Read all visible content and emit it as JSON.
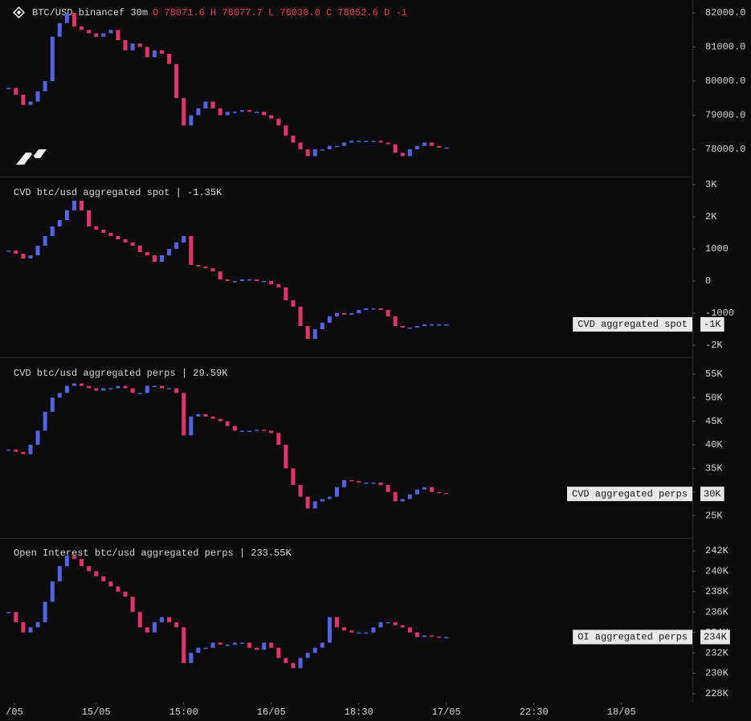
{
  "chart_data": [
    {
      "type": "candlestick",
      "title": "BTC/USD binancef 30m",
      "legend": "O 78071.6 H 78077.7 L 78030.0 C 78052.6 D -1",
      "up_color": "#5464e0",
      "down_color": "#e0356a",
      "x": [
        -12,
        -11,
        -10,
        -9,
        -8,
        -7,
        -6,
        -5,
        -4,
        -3,
        -2,
        -1,
        0,
        1,
        2,
        3,
        4,
        5,
        6,
        7,
        8,
        9,
        10,
        11,
        12,
        13,
        14,
        15,
        16,
        17,
        18,
        19,
        20,
        21,
        22,
        23,
        24,
        25,
        26,
        27,
        28,
        29,
        30,
        31,
        32,
        33,
        34,
        35,
        36,
        37,
        38,
        39,
        40,
        41,
        42,
        43,
        44,
        45,
        46,
        47,
        48
      ],
      "values": [
        79800,
        79600,
        79300,
        79400,
        79700,
        80000,
        81300,
        81700,
        82000,
        81600,
        81500,
        81400,
        81300,
        81400,
        81500,
        81200,
        80900,
        81100,
        81000,
        80700,
        80900,
        80800,
        80500,
        79500,
        78700,
        79000,
        79200,
        79400,
        79200,
        79000,
        79100,
        79100,
        79150,
        79100,
        79100,
        79000,
        78900,
        78700,
        78400,
        78200,
        78000,
        77800,
        78000,
        78000,
        78100,
        78100,
        78200,
        78250,
        78250,
        78250,
        78250,
        78200,
        78150,
        77900,
        77800,
        78000,
        78100,
        78200,
        78100,
        78050,
        78053
      ],
      "xlim": [
        -12.3,
        81.5
      ],
      "ylim": [
        77200,
        82376
      ],
      "yticks": [
        {
          "value": 82000,
          "label": "82000.0"
        },
        {
          "value": 81000,
          "label": "81000.0"
        },
        {
          "value": 80000,
          "label": "80000.0"
        },
        {
          "value": 79000,
          "label": "79000.0"
        },
        {
          "value": 78000,
          "label": "78000.0"
        }
      ]
    },
    {
      "type": "candlestick",
      "title": "CVD btc/usd aggregated spot | -1.35K",
      "up_color": "#5464e0",
      "down_color": "#e0356a",
      "x": [
        -12,
        -11,
        -10,
        -9,
        -8,
        -7,
        -6,
        -5,
        -4,
        -3,
        -2,
        -1,
        0,
        1,
        2,
        3,
        4,
        5,
        6,
        7,
        8,
        9,
        10,
        11,
        12,
        13,
        14,
        15,
        16,
        17,
        18,
        19,
        20,
        21,
        22,
        23,
        24,
        25,
        26,
        27,
        28,
        29,
        30,
        31,
        32,
        33,
        34,
        35,
        36,
        37,
        38,
        39,
        40,
        41,
        42,
        43,
        44,
        45,
        46,
        47,
        48
      ],
      "values": [
        950,
        850,
        700,
        800,
        1100,
        1400,
        1700,
        1900,
        2200,
        2500,
        2200,
        1700,
        1600,
        1500,
        1400,
        1300,
        1200,
        1100,
        900,
        800,
        600,
        800,
        1000,
        1200,
        1400,
        500,
        450,
        400,
        300,
        50,
        0,
        0,
        50,
        50,
        0,
        0,
        -100,
        -200,
        -600,
        -800,
        -1400,
        -1800,
        -1500,
        -1300,
        -1100,
        -1000,
        -1050,
        -1000,
        -900,
        -850,
        -850,
        -900,
        -1100,
        -1400,
        -1450,
        -1450,
        -1400,
        -1350,
        -1350,
        -1350,
        -1350
      ],
      "xlim": [
        -12.3,
        81.5
      ],
      "ylim": [
        -2375,
        3250
      ],
      "yticks": [
        {
          "value": 3000,
          "label": "3K"
        },
        {
          "value": 2000,
          "label": "2K"
        },
        1000,
        0,
        -1000,
        {
          "value": -2000,
          "label": "-2K"
        }
      ],
      "tag": {
        "name": "CVD aggregated spot",
        "value_label": "-1K"
      }
    },
    {
      "type": "candlestick",
      "title": "CVD btc/usd aggregated perps | 29.59K",
      "up_color": "#5464e0",
      "down_color": "#e0356a",
      "x": [
        -12,
        -11,
        -10,
        -9,
        -8,
        -7,
        -6,
        -5,
        -4,
        -3,
        -2,
        -1,
        0,
        1,
        2,
        3,
        4,
        5,
        6,
        7,
        8,
        9,
        10,
        11,
        12,
        13,
        14,
        15,
        16,
        17,
        18,
        19,
        20,
        21,
        22,
        23,
        24,
        25,
        26,
        27,
        28,
        29,
        30,
        31,
        32,
        33,
        34,
        35,
        36,
        37,
        38,
        39,
        40,
        41,
        42,
        43,
        44,
        45,
        46,
        47,
        48
      ],
      "values": [
        39000,
        38500,
        38000,
        40000,
        43000,
        47000,
        50000,
        51000,
        52500,
        53000,
        52500,
        52000,
        51500,
        52000,
        52000,
        52500,
        52000,
        51000,
        51000,
        52500,
        52500,
        52000,
        52000,
        51000,
        42000,
        46000,
        46500,
        46000,
        45500,
        45000,
        44000,
        43000,
        43000,
        43000,
        43200,
        43000,
        42500,
        40000,
        35000,
        31500,
        29000,
        26500,
        28000,
        28500,
        29000,
        31000,
        32500,
        32300,
        32000,
        32000,
        32000,
        31500,
        30000,
        28000,
        28500,
        29500,
        30500,
        31000,
        30000,
        29800,
        29590
      ],
      "xlim": [
        -12.3,
        81.5
      ],
      "ylim": [
        20250,
        58560
      ],
      "yticks": [
        {
          "value": 55000,
          "label": "55K"
        },
        {
          "value": 50000,
          "label": "50K"
        },
        {
          "value": 45000,
          "label": "45K"
        },
        {
          "value": 40000,
          "label": "40K"
        },
        {
          "value": 35000,
          "label": "35K"
        },
        {
          "value": 30000,
          "label": "30K"
        },
        {
          "value": 25000,
          "label": "25K"
        }
      ],
      "tag": {
        "name": "CVD aggregated perps",
        "value_label": "30K"
      }
    },
    {
      "type": "candlestick",
      "title": "Open Interest btc/usd aggregated perps | 233.55K",
      "up_color": "#5464e0",
      "down_color": "#e0356a",
      "x": [
        -12,
        -11,
        -10,
        -9,
        -8,
        -7,
        -6,
        -5,
        -4,
        -3,
        -2,
        -1,
        0,
        1,
        2,
        3,
        4,
        5,
        6,
        7,
        8,
        9,
        10,
        11,
        12,
        13,
        14,
        15,
        16,
        17,
        18,
        19,
        20,
        21,
        22,
        23,
        24,
        25,
        26,
        27,
        28,
        29,
        30,
        31,
        32,
        33,
        34,
        35,
        36,
        37,
        38,
        39,
        40,
        41,
        42,
        43,
        44,
        45,
        46,
        47,
        48
      ],
      "values": [
        236000,
        235000,
        234000,
        234500,
        235000,
        237000,
        239000,
        240500,
        241500,
        241200,
        240500,
        240000,
        239500,
        239000,
        238500,
        238000,
        237500,
        236000,
        234500,
        234000,
        235000,
        235500,
        235000,
        234500,
        231000,
        232000,
        232500,
        232500,
        233000,
        232800,
        232800,
        233000,
        233000,
        232500,
        232300,
        233000,
        232500,
        231500,
        231000,
        230500,
        231500,
        232000,
        232500,
        233000,
        235500,
        234500,
        234200,
        234000,
        234000,
        234000,
        234500,
        235000,
        235000,
        234700,
        234500,
        234000,
        233550,
        233700,
        233600,
        233500,
        233550
      ],
      "xlim": [
        -12.3,
        81.5
      ],
      "ylim": [
        227130,
        243260
      ],
      "yticks": [
        {
          "value": 242000,
          "label": "242K"
        },
        {
          "value": 240000,
          "label": "240K"
        },
        {
          "value": 238000,
          "label": "238K"
        },
        {
          "value": 236000,
          "label": "236K"
        },
        {
          "value": 234000,
          "label": "234K"
        },
        {
          "value": 232000,
          "label": "232K"
        },
        {
          "value": 230000,
          "label": "230K"
        },
        {
          "value": 228000,
          "label": "228K"
        }
      ],
      "tag": {
        "name": "OI aggregated perps",
        "value_label": "234K"
      },
      "xticks": [
        {
          "value": -11.2,
          "label": "/05"
        },
        {
          "value": 0,
          "label": "15/05"
        },
        {
          "value": 12,
          "label": "15:00"
        },
        {
          "value": 24,
          "label": "16/05"
        },
        {
          "value": 36,
          "label": "18:30"
        },
        {
          "value": 48,
          "label": "17/05"
        },
        {
          "value": 60,
          "label": "22:30"
        },
        {
          "value": 72,
          "label": "18/05"
        }
      ]
    }
  ]
}
